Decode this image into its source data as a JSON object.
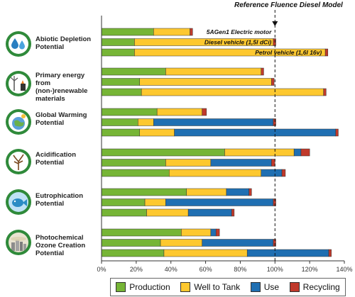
{
  "ref_title": "Reference Fluence Diesel Model",
  "categories": [
    {
      "label": "Abiotic Depletion Potential",
      "icon": "water-drops-icon"
    },
    {
      "label": "Primary energy from (non-)renewable materials",
      "icon": "energy-sources-icon"
    },
    {
      "label": "Global Warming Potential",
      "icon": "globe-icon"
    },
    {
      "label": "Acidification Potential",
      "icon": "bare-tree-icon"
    },
    {
      "label": "Eutrophication Potential",
      "icon": "fish-icon"
    },
    {
      "label": "Photochemical Ozone Creation Potential",
      "icon": "smog-city-icon"
    }
  ],
  "legend": {
    "items": [
      {
        "label": "Production",
        "color": "#76b536"
      },
      {
        "label": "Well to Tank",
        "color": "#fdc82f"
      },
      {
        "label": "Use",
        "color": "#1f6fb2"
      },
      {
        "label": "Recycling",
        "color": "#c0392b"
      }
    ]
  },
  "chart_data": {
    "type": "bar",
    "orientation": "horizontal",
    "stacked": true,
    "title": "Reference Fluence Diesel Model",
    "x_ticks": [
      "0%",
      "20%",
      "40%",
      "60%",
      "80%",
      "100%",
      "120%",
      "140%"
    ],
    "xlim": [
      0,
      140
    ],
    "reference_line": 100,
    "vehicles": [
      "5AGen1 Electric motor",
      "Diesel vehicle (1,5l dCi)",
      "Petrol vehicle (1,6l 16v)"
    ],
    "series_names": [
      "Production",
      "Well to Tank",
      "Use",
      "Recycling"
    ],
    "groups": [
      {
        "category": "Abiotic Depletion Potential",
        "bars": [
          [
            30,
            21,
            0,
            1.5
          ],
          [
            19,
            80,
            0,
            1.5
          ],
          [
            19,
            110,
            0,
            1.5
          ]
        ]
      },
      {
        "category": "Primary energy from (non-)renewable materials",
        "bars": [
          [
            37,
            55,
            0,
            1.5
          ],
          [
            22,
            76,
            0,
            1.5
          ],
          [
            23,
            105,
            0,
            1.5
          ]
        ]
      },
      {
        "category": "Global Warming Potential",
        "bars": [
          [
            32,
            26,
            0,
            2.5
          ],
          [
            21,
            9,
            69,
            1.5
          ],
          [
            22,
            20,
            93,
            1.5
          ]
        ]
      },
      {
        "category": "Acidification Potential",
        "bars": [
          [
            71,
            40,
            4,
            5
          ],
          [
            37,
            26,
            35,
            2
          ],
          [
            39,
            53,
            12,
            2
          ]
        ]
      },
      {
        "category": "Eutrophication Potential",
        "bars": [
          [
            49,
            23,
            13,
            1.5
          ],
          [
            25,
            12,
            62,
            1.5
          ],
          [
            26,
            24,
            25,
            1.5
          ]
        ]
      },
      {
        "category": "Photochemical Ozone Creation Potential",
        "bars": [
          [
            46,
            17,
            3,
            2
          ],
          [
            34,
            24,
            41,
            1.5
          ],
          [
            36,
            48,
            47,
            1.5
          ]
        ]
      }
    ]
  }
}
